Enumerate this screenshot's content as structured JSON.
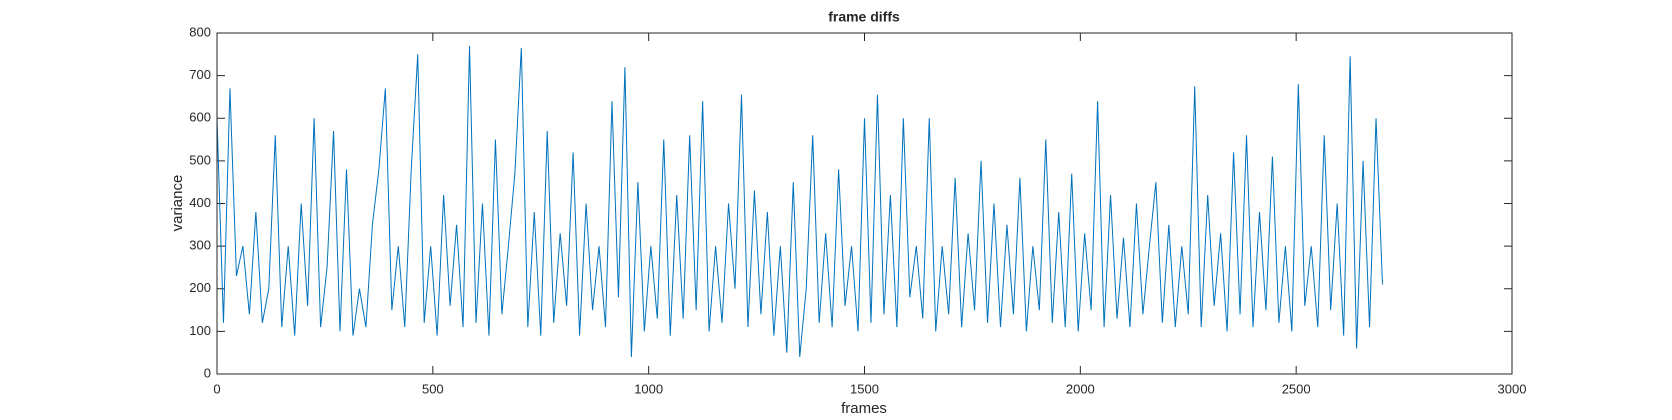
{
  "chart_data": {
    "type": "line",
    "title": "frame diffs",
    "xlabel": "frames",
    "ylabel": "variance",
    "xlim": [
      0,
      3000
    ],
    "xticks": [
      0,
      500,
      1000,
      1500,
      2000,
      2500,
      3000
    ],
    "ylim": [
      0,
      800
    ],
    "yticks": [
      0,
      100,
      200,
      300,
      400,
      500,
      600,
      700,
      800
    ],
    "series": [
      {
        "color": "#0072bd",
        "x": [
          0,
          15,
          30,
          45,
          60,
          75,
          90,
          105,
          120,
          135,
          150,
          165,
          180,
          195,
          210,
          225,
          240,
          255,
          270,
          285,
          300,
          315,
          330,
          345,
          360,
          375,
          390,
          405,
          420,
          435,
          450,
          465,
          480,
          495,
          510,
          525,
          540,
          555,
          570,
          585,
          600,
          615,
          630,
          645,
          660,
          675,
          690,
          705,
          720,
          735,
          750,
          765,
          780,
          795,
          810,
          825,
          840,
          855,
          870,
          885,
          900,
          915,
          930,
          945,
          960,
          975,
          990,
          1005,
          1020,
          1035,
          1050,
          1065,
          1080,
          1095,
          1110,
          1125,
          1140,
          1155,
          1170,
          1185,
          1200,
          1215,
          1230,
          1245,
          1260,
          1275,
          1290,
          1305,
          1320,
          1335,
          1350,
          1365,
          1380,
          1395,
          1410,
          1425,
          1440,
          1455,
          1470,
          1485,
          1500,
          1515,
          1530,
          1545,
          1560,
          1575,
          1590,
          1605,
          1620,
          1635,
          1650,
          1665,
          1680,
          1695,
          1710,
          1725,
          1740,
          1755,
          1770,
          1785,
          1800,
          1815,
          1830,
          1845,
          1860,
          1875,
          1890,
          1905,
          1920,
          1935,
          1950,
          1965,
          1980,
          1995,
          2010,
          2025,
          2040,
          2055,
          2070,
          2085,
          2100,
          2115,
          2130,
          2145,
          2160,
          2175,
          2190,
          2205,
          2220,
          2235,
          2250,
          2265,
          2280,
          2295,
          2310,
          2325,
          2340,
          2355,
          2370,
          2385,
          2400,
          2415,
          2430,
          2445,
          2460,
          2475,
          2490,
          2505,
          2520,
          2535,
          2550,
          2565,
          2580,
          2595,
          2610,
          2625,
          2640,
          2655,
          2670,
          2685,
          2700
        ],
        "values": [
          600,
          120,
          670,
          230,
          300,
          140,
          380,
          120,
          200,
          560,
          110,
          300,
          90,
          400,
          160,
          600,
          110,
          250,
          570,
          100,
          480,
          90,
          200,
          110,
          350,
          480,
          670,
          150,
          300,
          110,
          480,
          750,
          120,
          300,
          90,
          420,
          160,
          350,
          110,
          770,
          120,
          400,
          90,
          550,
          140,
          300,
          470,
          765,
          110,
          380,
          90,
          570,
          120,
          330,
          160,
          520,
          90,
          400,
          150,
          300,
          110,
          640,
          180,
          720,
          40,
          450,
          100,
          300,
          130,
          550,
          90,
          420,
          130,
          560,
          150,
          640,
          100,
          300,
          120,
          400,
          200,
          655,
          110,
          430,
          140,
          380,
          90,
          300,
          50,
          450,
          40,
          200,
          560,
          120,
          330,
          110,
          480,
          160,
          300,
          100,
          600,
          120,
          655,
          140,
          420,
          110,
          600,
          180,
          300,
          130,
          600,
          100,
          300,
          140,
          460,
          110,
          330,
          150,
          500,
          120,
          400,
          110,
          350,
          140,
          460,
          100,
          300,
          150,
          550,
          120,
          380,
          110,
          470,
          100,
          330,
          150,
          640,
          110,
          420,
          130,
          320,
          110,
          400,
          140,
          300,
          450,
          120,
          350,
          110,
          300,
          140,
          675,
          110,
          420,
          160,
          330,
          100,
          520,
          140,
          560,
          110,
          380,
          150,
          510,
          120,
          300,
          100,
          680,
          160,
          300,
          110,
          560,
          150,
          400,
          90,
          745,
          60,
          500,
          110,
          600,
          210
        ]
      }
    ]
  }
}
